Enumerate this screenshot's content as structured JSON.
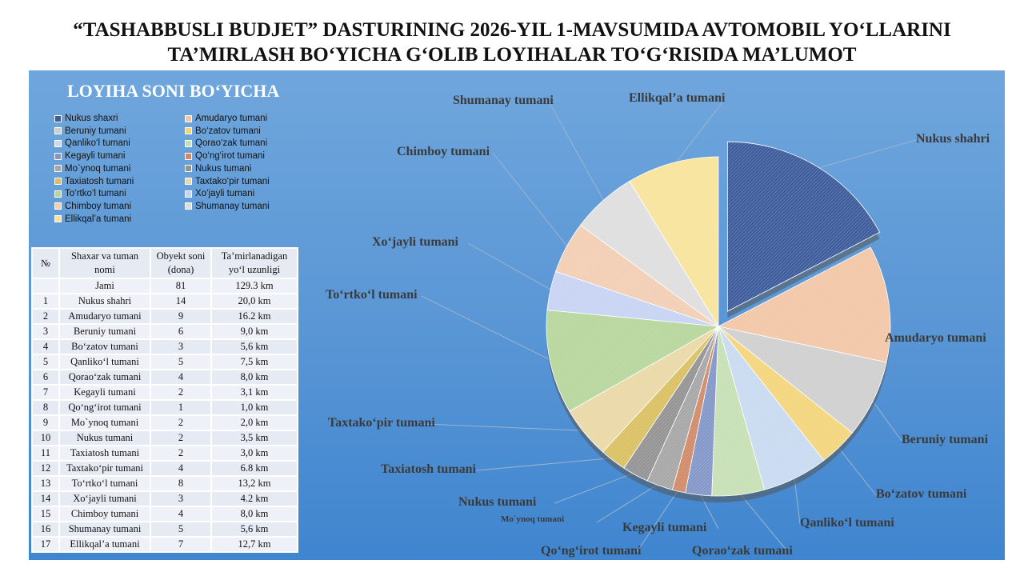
{
  "title_line1": "“TASHABBUSLI BUDJET” DASTURINING 2026-YIL 1-MAVSUMIDA AVTOMOBIL YO‘LLARINI",
  "title_line2": "TA’MIRLASH BO‘YICHA G‘OLIB LOYIHALAR TO‘G‘RISIDA MA’LUMOT",
  "table": {
    "headers": [
      "№",
      "Shaxar va tuman nomi",
      "Obyekt soni (dona)",
      "Ta’mirlanadigan yo‘l uzunligi"
    ],
    "total": {
      "label": "Jami",
      "count": "81",
      "length": "129.3 km"
    },
    "rows": [
      [
        "1",
        "Nukus shahri",
        "14",
        "20,0 km"
      ],
      [
        "2",
        "Amudaryo tumani",
        "9",
        "16.2 km"
      ],
      [
        "3",
        "Beruniy tumani",
        "6",
        "9,0 km"
      ],
      [
        "4",
        "Bo‘zatov tumani",
        "3",
        "5,6 km"
      ],
      [
        "5",
        "Qanliko‘l tumani",
        "5",
        "7,5 km"
      ],
      [
        "6",
        "Qorao‘zak tumani",
        "4",
        "8,0 km"
      ],
      [
        "7",
        "Kegayli tumani",
        "2",
        "3,1 km"
      ],
      [
        "8",
        "Qo‘ng‘irot tumani",
        "1",
        "1,0 km"
      ],
      [
        "9",
        "Mo`ynoq tumani",
        "2",
        "2,0 km"
      ],
      [
        "10",
        "Nukus tumani",
        "2",
        "3,5 km"
      ],
      [
        "11",
        "Taxiatosh tumani",
        "2",
        "3,0 km"
      ],
      [
        "12",
        "Taxtako‘pir tumani",
        "4",
        "6.8 km"
      ],
      [
        "13",
        "To‘rtko‘l tumani",
        "8",
        "13,2 km"
      ],
      [
        "14",
        "Xo‘jayli tumani",
        "3",
        "4.2 km"
      ],
      [
        "15",
        "Chimboy tumani",
        "4",
        "8,0 km"
      ],
      [
        "16",
        "Shumanay tumani",
        "5",
        "5,6 km"
      ],
      [
        "17",
        "Ellikqal’a tumani",
        "7",
        "12,7 km"
      ]
    ]
  },
  "chart_data": {
    "type": "pie",
    "title": "LOYIHA SONI BO‘YICHA",
    "legend_placement": "top-left",
    "legend": [
      "Nukus shaxri",
      "Amudaryo tumani",
      "Beruniy tumani",
      "Bo‘zatov tumani",
      "Qanliko‘l tumani",
      "Qorao‘zak tumani",
      "Kegayli tumani",
      "Qo‘ng‘irot tumani",
      "Mo`ynoq tumani",
      "Nukus tumani",
      "Taxiatosh tumani",
      "Taxtako‘pir tumani",
      "To‘rtko‘l tumani",
      "Xo‘jayli tumani",
      "Chimboy tumani",
      "Shumanay tumani",
      "Ellikqal’a tumani"
    ],
    "categories": [
      "Nukus shahri",
      "Amudaryo tumani",
      "Beruniy tumani",
      "Bo‘zatov tumani",
      "Qanliko‘l tumani",
      "Qorao‘zak tumani",
      "Kegayli tumani",
      "Qo‘ng‘irot tumani",
      "Mo`ynoq tumani",
      "Nukus tumani",
      "Taxiatosh tumani",
      "Taxtako‘pir tumani",
      "To‘rtko‘l tumani",
      "Xo‘jayli tumani",
      "Chimboy tumani",
      "Shumanay tumani",
      "Ellikqal’a tumani"
    ],
    "values": [
      14,
      9,
      6,
      3,
      5,
      4,
      2,
      1,
      2,
      2,
      2,
      4,
      8,
      3,
      4,
      5,
      7
    ],
    "colors": [
      "#3d5c9c",
      "#f2c6a6",
      "#cfcfcf",
      "#f3d57c",
      "#c9daf0",
      "#c6e0b4",
      "#8296c8",
      "#d08a68",
      "#a6a6a6",
      "#939393",
      "#d9c063",
      "#ead8a6",
      "#b6d69c",
      "#c7d3f2",
      "#f1ceb4",
      "#dedede",
      "#f8e39c"
    ]
  }
}
